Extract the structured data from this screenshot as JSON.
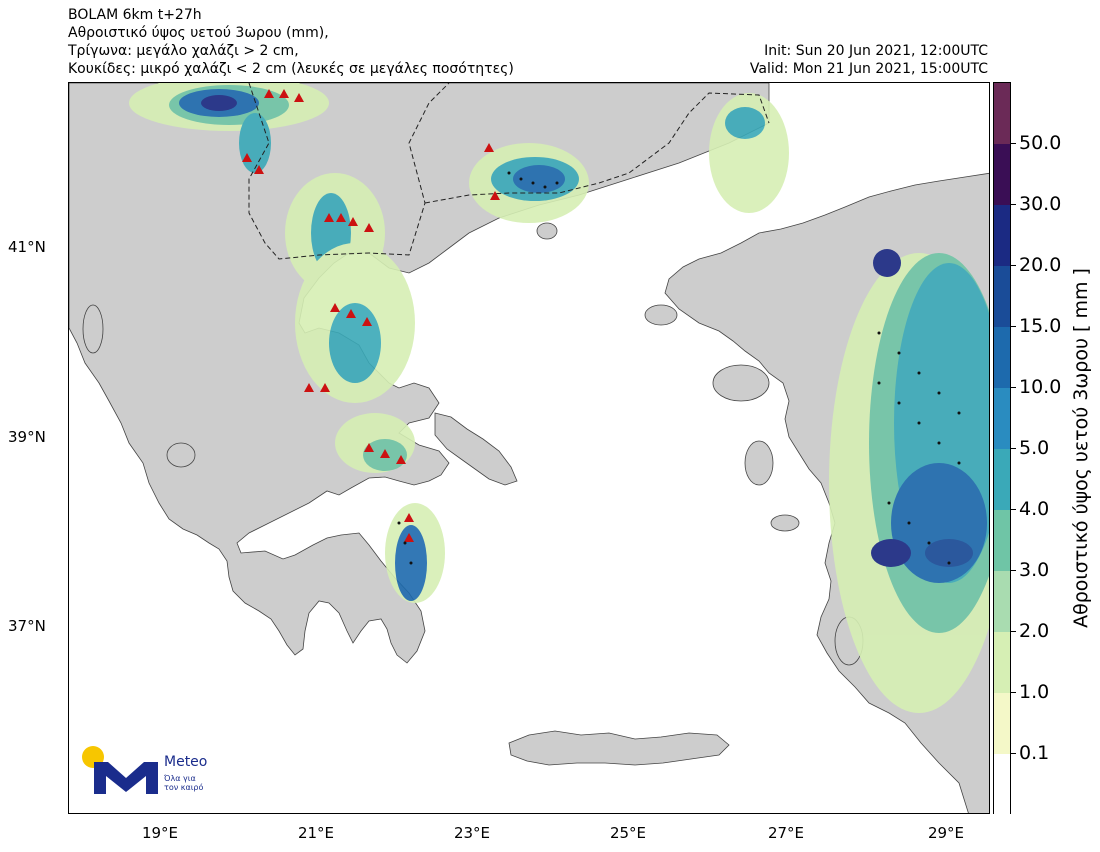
{
  "header": {
    "line1": "BOLAM 6km t+27h",
    "line2": "Αθροιστικό ύψος υετού 3ωρου (mm),",
    "line3": "Τρίγωνα: μεγάλο χαλάζι > 2 cm,",
    "line4": "Κουκίδες: μικρό χαλάζι < 2 cm (λευκές σε μεγάλες ποσότητες)",
    "init": "Init: Sun 20 Jun 2021, 12:00UTC",
    "valid": "Valid: Mon 21 Jun 2021, 15:00UTC"
  },
  "axes": {
    "lat_labels": [
      "41°N",
      "39°N",
      "37°N"
    ],
    "lon_labels": [
      "19°E",
      "21°E",
      "23°E",
      "25°E",
      "27°E",
      "29°E"
    ]
  },
  "colorbar": {
    "title": "Αθροιστικό ύψος υετού 3ωρου [ mm ]",
    "levels": [
      "0.1",
      "1.0",
      "2.0",
      "3.0",
      "4.0",
      "5.0",
      "10.0",
      "15.0",
      "20.0",
      "30.0",
      "50.0"
    ],
    "colors": [
      "#ffffff",
      "#f4f8c8",
      "#d6efb4",
      "#a9dcb0",
      "#6fc5a6",
      "#3aa9b8",
      "#2a8cc0",
      "#1d6aad",
      "#1a4c98",
      "#1b2a83",
      "#3a0e55",
      "#6b2a57"
    ]
  },
  "map": {
    "land_color": "#cdcdcd",
    "sea_color": "#ffffff",
    "large_hail_color": "#cc1111",
    "small_hail_color": "#111111"
  },
  "logo": {
    "name": "Meteo",
    "tagline_1": "Όλα για",
    "tagline_2": "τον καιρό"
  }
}
